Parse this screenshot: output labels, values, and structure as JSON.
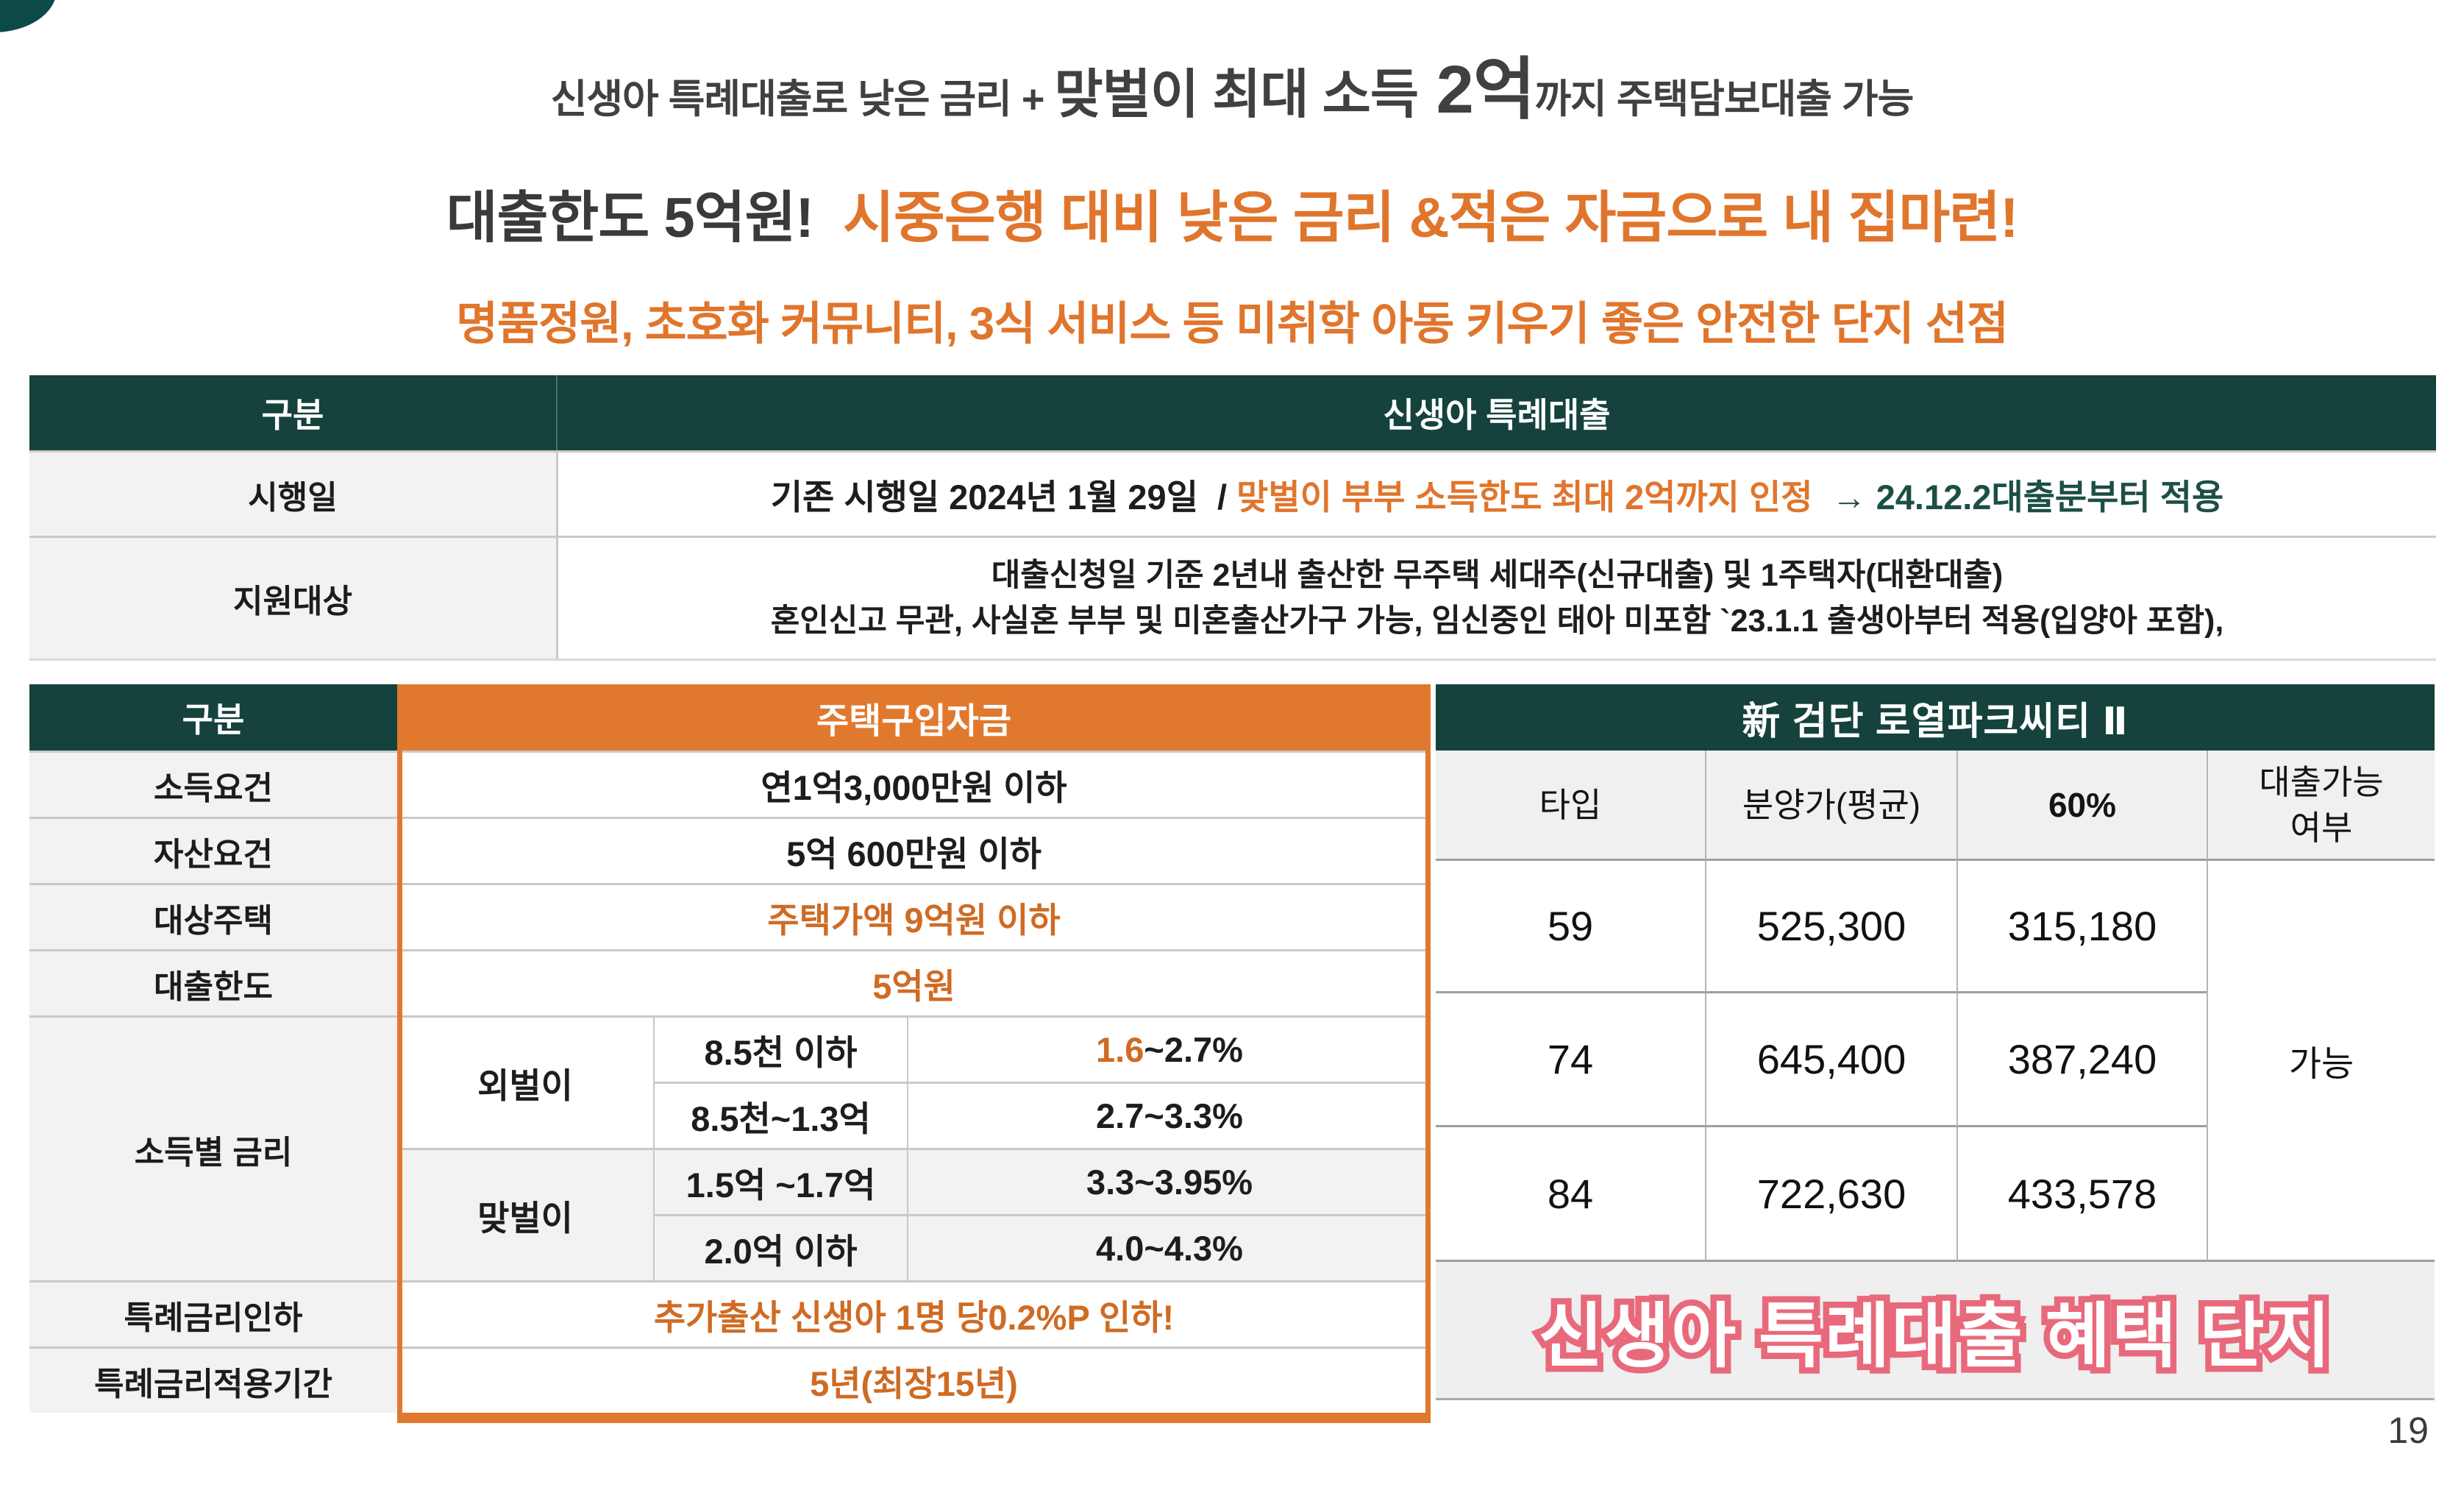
{
  "colors": {
    "teal": "#15423d",
    "orange": "#e0792e",
    "orange_text": "#cf6b24",
    "pink": "#e8697b",
    "label_gray": "#f2f2f2"
  },
  "headline": {
    "line1": {
      "part1": "신생아 특례대출로 낮은 금리 + ",
      "part2": "맞벌이 최대 소득",
      "part3": " 2억",
      "part4": "까지 주택담보대출 가능"
    },
    "line2": {
      "dark": "대출한도 5억원!",
      "orange": "  시중은행 대비 낮은 금리 &적은 자금으로 내 집마련!"
    },
    "line3": "명품정원, 초호화 커뮤니티, 3식 서비스 등 미취학 아동 키우기 좋은 안전한 단지 선점"
  },
  "table1": {
    "header": {
      "col1": "구분",
      "col2": "신생아 특례대출"
    },
    "launch": {
      "label": "시행일",
      "black": "기존 시행일 2024년 1월 29일  / ",
      "orange": "맞벌이 부부 소득한도 최대 2억까지 인정",
      "teal": "  → 24.12.2대출분부터 적용"
    },
    "target": {
      "label": "지원대상",
      "line1": "대출신청일 기준 2년내 출산한 무주택 세대주(신규대출) 및 1주택자(대환대출)",
      "line2": "혼인신고 무관, 사실혼 부부 및 미혼출산가구 가능, 임신중인 태아 미포함 `23.1.1 출생아부터 적용(입양아 포함),"
    }
  },
  "table2": {
    "header": {
      "col1": "구분",
      "col2": "주택구입자금"
    },
    "income_req": {
      "label": "소득요건",
      "value": "연1억3,000만원 이하"
    },
    "asset_req": {
      "label": "자산요건",
      "value": "5억 600만원 이하"
    },
    "target_home": {
      "label": "대상주택",
      "value": "주택가액 9억원 이하"
    },
    "loan_limit": {
      "label": "대출한도",
      "value": "5억원"
    },
    "rate_section": {
      "label": "소득별 금리",
      "single_label": "외벌이",
      "dual_label": "맞벌이",
      "row1": {
        "income": "8.5천 이하",
        "rate_lead": "1.6",
        "rate_rest": "~2.7%"
      },
      "row2": {
        "income": "8.5천~1.3억",
        "rate": "2.7~3.3%"
      },
      "row3": {
        "income": "1.5억 ~1.7억",
        "rate": "3.3~3.95%"
      },
      "row4": {
        "income": "2.0억 이하",
        "rate": "4.0~4.3%"
      }
    },
    "special_cut": {
      "label": "특례금리인하",
      "value": "추가출산 신생아 1명 당0.2%P 인하!"
    },
    "special_period": {
      "label": "특례금리적용기간",
      "value": "5년(최장15년)"
    }
  },
  "table3": {
    "title": "新 검단 로열파크씨티 Ⅱ",
    "columns": [
      "타입",
      "분양가(평균)",
      "60%"
    ],
    "col4": {
      "line1": "대출가능",
      "line2": "여부"
    },
    "rows": [
      {
        "type": "59",
        "price": "525,300",
        "sixty": "315,180"
      },
      {
        "type": "74",
        "price": "645,400",
        "sixty": "387,240"
      },
      {
        "type": "84",
        "price": "722,630",
        "sixty": "433,578"
      }
    ],
    "loan_possible": "가능",
    "banner": "신생아 특례대출 혜택 단지"
  },
  "page": {
    "number": "19"
  }
}
